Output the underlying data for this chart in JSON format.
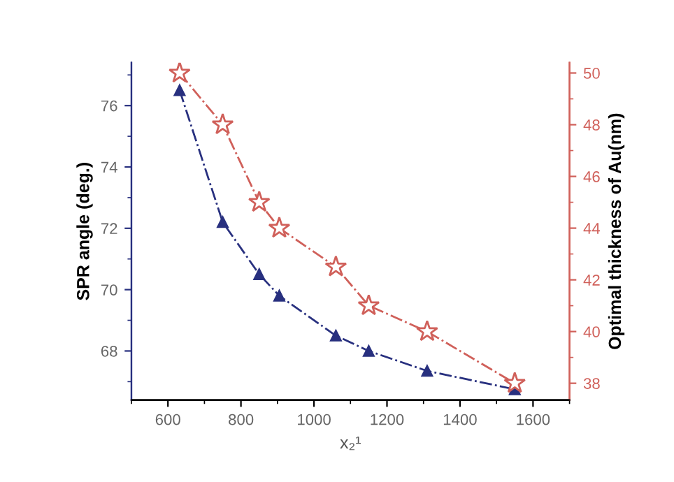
{
  "chart_data": {
    "type": "line",
    "xlabel": "x₂¹",
    "ylabel": "SPR angle (deg.)",
    "y2label": "Optimal thickness of Au(nm)",
    "x": [
      632,
      750,
      850,
      905,
      1060,
      1150,
      1310,
      1550
    ],
    "series": [
      {
        "color": "#28307f",
        "marker": "triangle",
        "line_style": "dashdot",
        "values": [
          76.5,
          72.2,
          70.5,
          69.8,
          68.5,
          68.0,
          67.35,
          66.75
        ]
      },
      {
        "color": "#d0605a",
        "marker": "star",
        "line_style": "dashdot",
        "axis": "y2",
        "values": [
          50.0,
          48.0,
          45.0,
          44.0,
          42.5,
          41.0,
          40.0,
          38.0
        ]
      }
    ],
    "xlim": [
      500,
      1700
    ],
    "xticks": [
      600,
      800,
      1000,
      1200,
      1400,
      1600
    ],
    "ylim": [
      66.4,
      77.4
    ],
    "yticks": [
      68,
      70,
      72,
      74,
      76
    ],
    "y2lim": [
      37.35,
      50.4
    ],
    "y2ticks": [
      38,
      40,
      42,
      44,
      46,
      48,
      50
    ],
    "grid": false,
    "legend": false
  }
}
